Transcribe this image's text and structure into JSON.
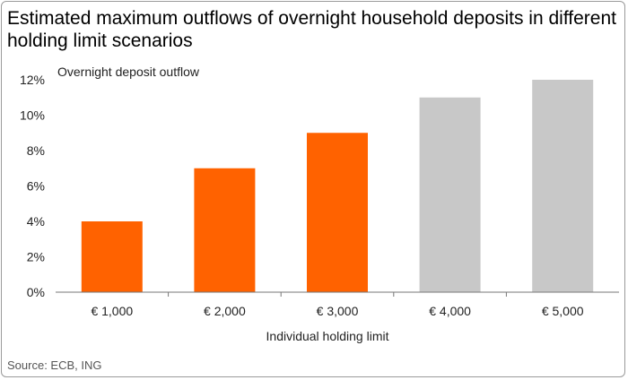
{
  "title": "Estimated maximum outflows of overnight household deposits in different holding limit scenarios",
  "source": "Source: ECB, ING",
  "chart_data": {
    "type": "bar",
    "ylabel": "Overnight deposit outflow",
    "xlabel": "Individual holding limit",
    "categories": [
      "€ 1,000",
      "€ 2,000",
      "€ 3,000",
      "€ 4,000",
      "€ 5,000"
    ],
    "values": [
      4,
      7,
      9,
      11,
      12
    ],
    "bar_colors": [
      "#ff6200",
      "#ff6200",
      "#ff6200",
      "#c8c8c8",
      "#c8c8c8"
    ],
    "ylim": [
      0,
      12
    ],
    "yticks": [
      0,
      2,
      4,
      6,
      8,
      10,
      12
    ],
    "ytick_labels": [
      "0%",
      "2%",
      "4%",
      "6%",
      "8%",
      "10%",
      "12%"
    ],
    "grid": false,
    "legend": "none"
  }
}
